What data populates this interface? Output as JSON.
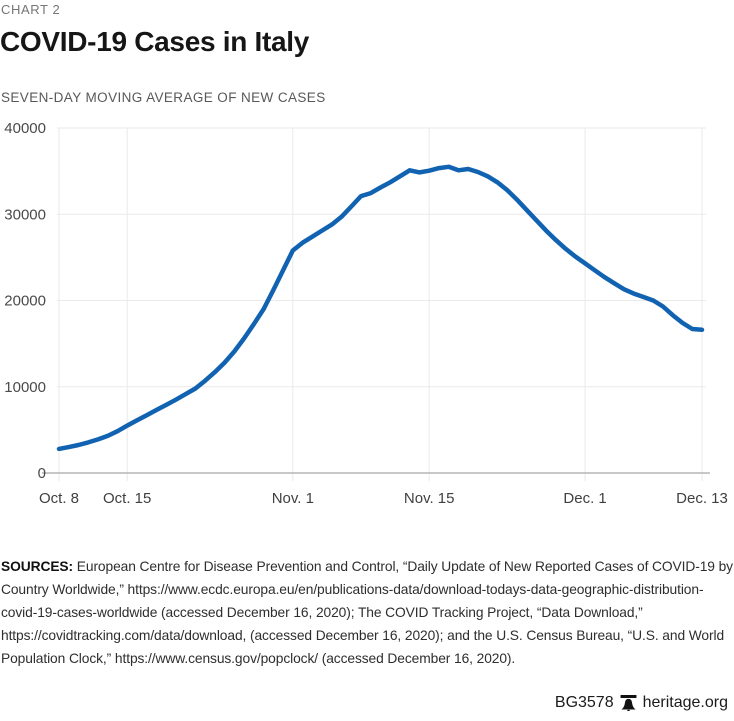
{
  "header": {
    "kicker": "CHART 2",
    "title": "COVID-19 Cases in Italy",
    "subtitle": "SEVEN-DAY MOVING AVERAGE OF NEW CASES"
  },
  "chart_data": {
    "type": "line",
    "title": "COVID-19 Cases in Italy",
    "subtitle": "SEVEN-DAY MOVING AVERAGE OF NEW CASES",
    "grid": true,
    "legend": "none",
    "line_color": "#1163b2",
    "ylim": [
      0,
      40000
    ],
    "y_ticks": [
      0,
      10000,
      20000,
      30000,
      40000
    ],
    "y_tick_labels": [
      "0",
      "10000",
      "20000",
      "30000",
      "40000"
    ],
    "x_tick_labels": [
      "Oct. 8",
      "Oct. 15",
      "Nov. 1",
      "Nov. 15",
      "Dec. 1",
      "Dec. 13"
    ],
    "x_tick_positions_days": [
      0,
      7,
      24,
      38,
      54,
      66
    ],
    "dates": [
      "Oct. 8",
      "Oct. 9",
      "Oct. 10",
      "Oct. 11",
      "Oct. 12",
      "Oct. 13",
      "Oct. 14",
      "Oct. 15",
      "Oct. 16",
      "Oct. 17",
      "Oct. 18",
      "Oct. 19",
      "Oct. 20",
      "Oct. 21",
      "Oct. 22",
      "Oct. 23",
      "Oct. 24",
      "Oct. 25",
      "Oct. 26",
      "Oct. 27",
      "Oct. 28",
      "Oct. 29",
      "Oct. 30",
      "Oct. 31",
      "Nov. 1",
      "Nov. 2",
      "Nov. 3",
      "Nov. 4",
      "Nov. 5",
      "Nov. 6",
      "Nov. 7",
      "Nov. 8",
      "Nov. 9",
      "Nov. 10",
      "Nov. 11",
      "Nov. 12",
      "Nov. 13",
      "Nov. 14",
      "Nov. 15",
      "Nov. 16",
      "Nov. 17",
      "Nov. 18",
      "Nov. 19",
      "Nov. 20",
      "Nov. 21",
      "Nov. 22",
      "Nov. 23",
      "Nov. 24",
      "Nov. 25",
      "Nov. 26",
      "Nov. 27",
      "Nov. 28",
      "Nov. 29",
      "Nov. 30",
      "Dec. 1",
      "Dec. 2",
      "Dec. 3",
      "Dec. 4",
      "Dec. 5",
      "Dec. 6",
      "Dec. 7",
      "Dec. 8",
      "Dec. 9",
      "Dec. 10",
      "Dec. 11",
      "Dec. 12",
      "Dec. 13"
    ],
    "values_daily": [
      2800,
      3000,
      3250,
      3550,
      3900,
      4300,
      4850,
      5500,
      6100,
      6700,
      7300,
      7900,
      8500,
      9150,
      9800,
      10700,
      11700,
      12800,
      14100,
      15600,
      17250,
      19000,
      21200,
      23500,
      25800,
      26700,
      27400,
      28100,
      28800,
      29700,
      30900,
      32100,
      32450,
      33100,
      33700,
      34400,
      35100,
      34850,
      35050,
      35350,
      35500,
      35100,
      35250,
      34900,
      34400,
      33700,
      32800,
      31700,
      30500,
      29300,
      28100,
      27000,
      26000,
      25100,
      24300,
      23500,
      22700,
      22000,
      21300,
      20800,
      20400,
      20000,
      19300,
      18300,
      17400,
      16700,
      16600
    ]
  },
  "sources": {
    "label": "SOURCES:",
    "text": "European Centre for Disease Prevention and Control, “Daily Update of New Reported Cases of COVID-19 by Country Worldwide,” https://www.ecdc.europa.eu/en/publications-data/download-todays-data-geographic-distribution-covid-19-cases-worldwide (accessed December 16, 2020); The COVID Tracking Project, “Data Download,” https://covidtracking.com/data/download, (accessed December 16, 2020); and the U.S. Census Bureau, “U.S. and World Population Clock,” https://www.census.gov/popclock/ (accessed December 16, 2020)."
  },
  "footer": {
    "doc_id": "BG3578",
    "site": "heritage.org"
  },
  "colors": {
    "line": "#1163b2",
    "grid": "#eaeaea",
    "axis": "#b5b5b5",
    "kicker": "#757575",
    "subtitle": "#58585a",
    "tick_label": "#4a4a4a",
    "title": "#161616"
  }
}
